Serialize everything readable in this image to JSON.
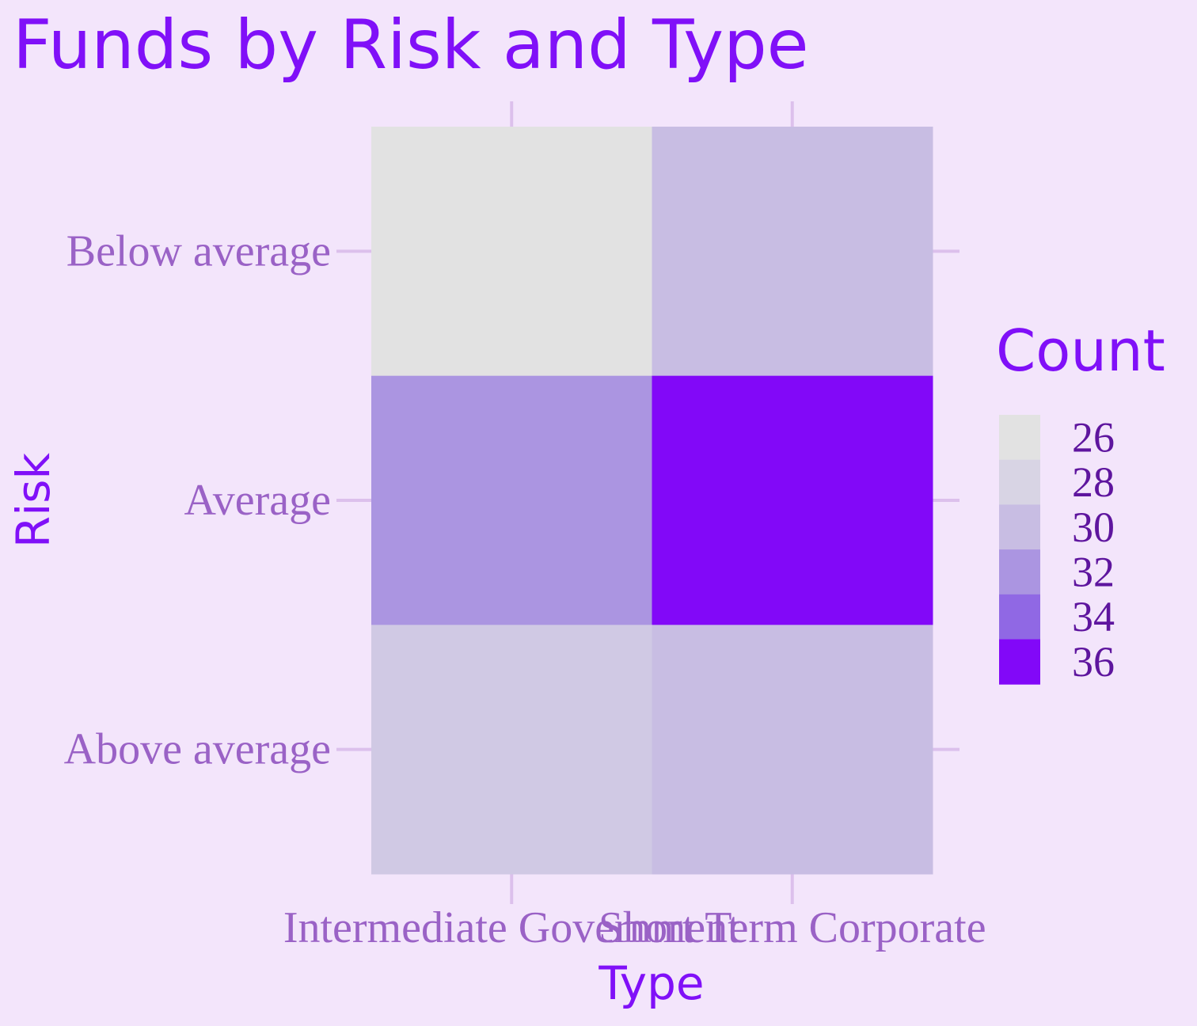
{
  "chart_data": {
    "type": "heatmap",
    "title": "Funds by Risk and Type",
    "xlabel": "Type",
    "ylabel": "Risk",
    "x_categories": [
      "Intermediate Government",
      "Short Term Corporate"
    ],
    "y_categories": [
      "Below average",
      "Average",
      "Above average"
    ],
    "values": [
      [
        26,
        30
      ],
      [
        32,
        36
      ],
      [
        29,
        30
      ]
    ],
    "legend": {
      "title": "Count",
      "ticks": [
        26,
        28,
        30,
        32,
        34,
        36
      ],
      "position": "right"
    },
    "color_scale": {
      "low": "#e2e2e2",
      "stops": [
        "#e2e2e2",
        "#d8d4e4",
        "#c8bde3",
        "#ab95e1",
        "#9068e4",
        "#8208f8"
      ],
      "high": "#8208f8"
    },
    "grid": false
  }
}
